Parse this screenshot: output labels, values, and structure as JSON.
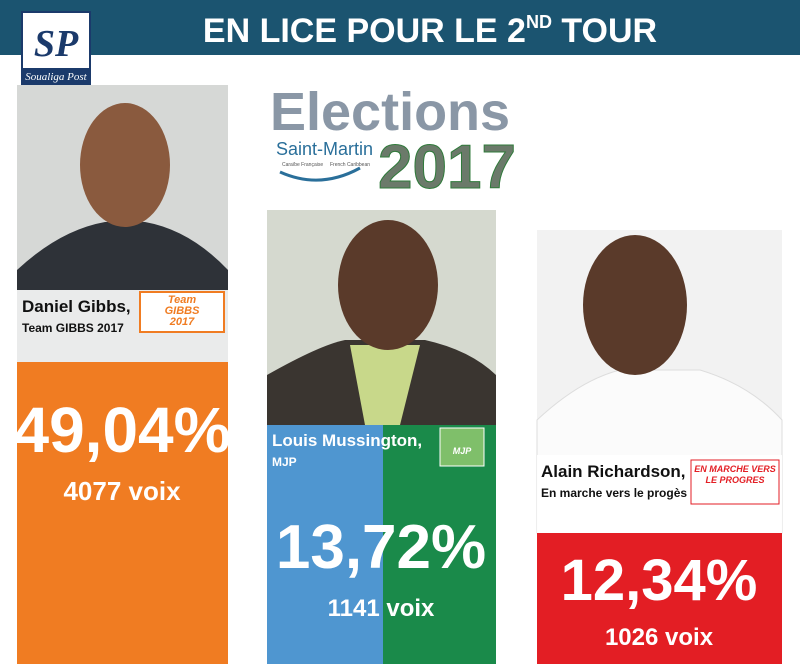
{
  "header": {
    "title_parts": [
      "EN LICE POUR LE 2",
      "ND",
      " TOUR"
    ]
  },
  "logo": {
    "initials": "SP",
    "name": "Soualiga Post"
  },
  "election_logo": {
    "word": "Elections",
    "place": "Saint-Martin",
    "sub_fr": "Caraïbe Française",
    "sub_en": "French Caribbean",
    "year": "2017"
  },
  "candidates": [
    {
      "name": "Daniel Gibbs,",
      "party": "Team GIBBS 2017",
      "badge": [
        "Team",
        "GIBBS",
        "2017"
      ],
      "percent": "49,04%",
      "votes": "4077 voix"
    },
    {
      "name": "Louis Mussington,",
      "party": "MJP",
      "badge": [
        "MJP"
      ],
      "percent": "13,72%",
      "votes": "1141 voix"
    },
    {
      "name": "Alain Richardson,",
      "party": "En marche vers le progès",
      "badge": [
        "EN MARCHE VERS",
        "LE PROGRES"
      ],
      "percent": "12,34%",
      "votes": "1026 voix"
    }
  ]
}
